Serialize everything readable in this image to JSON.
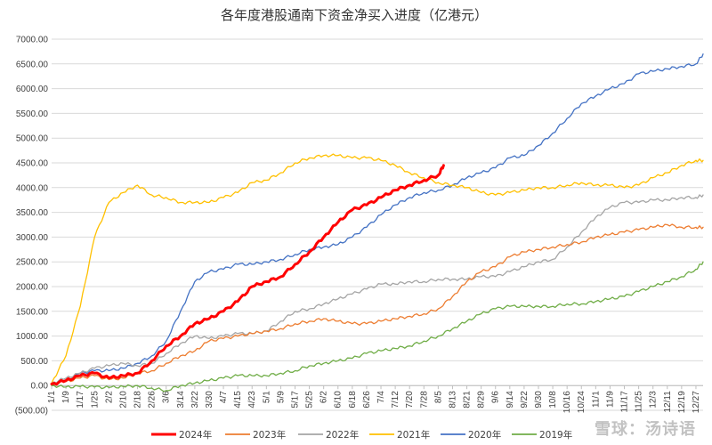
{
  "chart_data": {
    "type": "line",
    "title": "各年度港股通南下资金净买入进度（亿港元）",
    "xlabel": "",
    "ylabel": "",
    "ylim": [
      -500,
      7000
    ],
    "y_ticks": [
      "(500.00)",
      "0.00",
      "500.00",
      "1000.00",
      "1500.00",
      "2000.00",
      "2500.00",
      "3000.00",
      "3500.00",
      "4000.00",
      "4500.00",
      "5000.00",
      "5500.00",
      "6000.00",
      "6500.00",
      "7000.00"
    ],
    "x_ticks": [
      "1/1",
      "1/9",
      "1/17",
      "1/25",
      "2/2",
      "2/10",
      "2/18",
      "2/26",
      "3/6",
      "3/14",
      "3/22",
      "3/30",
      "4/7",
      "4/15",
      "4/23",
      "5/1",
      "5/9",
      "5/17",
      "5/25",
      "6/2",
      "6/10",
      "6/18",
      "6/26",
      "7/4",
      "7/12",
      "7/20",
      "7/28",
      "8/5",
      "8/13",
      "8/21",
      "8/29",
      "9/6",
      "9/14",
      "9/22",
      "9/30",
      "10/8",
      "10/16",
      "10/24",
      "11/1",
      "11/9",
      "11/17",
      "11/25",
      "12/3",
      "12/11",
      "12/19",
      "12/27"
    ],
    "grid": true,
    "legend_position": "bottom",
    "series": [
      {
        "name": "2024年",
        "color": "#ff0000",
        "width": 3,
        "x": [
          "1/1",
          "1/9",
          "1/17",
          "1/25",
          "2/2",
          "2/10",
          "2/18",
          "2/26",
          "3/6",
          "3/14",
          "3/22",
          "3/30",
          "4/7",
          "4/15",
          "4/23",
          "5/1",
          "5/9",
          "5/17",
          "5/25",
          "6/2",
          "6/10",
          "6/18",
          "6/26",
          "7/4",
          "7/12",
          "7/20",
          "7/28",
          "8/5",
          "8/8"
        ],
        "values": [
          30,
          100,
          200,
          250,
          150,
          200,
          250,
          500,
          800,
          1000,
          1250,
          1350,
          1500,
          1700,
          2000,
          2100,
          2200,
          2450,
          2700,
          3000,
          3300,
          3550,
          3650,
          3800,
          3950,
          4050,
          4150,
          4250,
          4450
        ]
      },
      {
        "name": "2023年",
        "color": "#ed7d31",
        "width": 1.3,
        "x": [
          "1/1",
          "1/9",
          "1/17",
          "1/25",
          "2/2",
          "2/10",
          "2/18",
          "2/26",
          "3/6",
          "3/14",
          "3/22",
          "3/30",
          "4/7",
          "4/15",
          "4/23",
          "5/1",
          "5/9",
          "5/17",
          "5/25",
          "6/2",
          "6/10",
          "6/18",
          "6/26",
          "7/4",
          "7/12",
          "7/20",
          "7/28",
          "8/5",
          "8/13",
          "8/21",
          "8/29",
          "9/6",
          "9/14",
          "9/22",
          "9/30",
          "10/8",
          "10/16",
          "10/24",
          "11/1",
          "11/9",
          "11/17",
          "11/25",
          "12/3",
          "12/11",
          "12/19",
          "12/27",
          "12/31"
        ],
        "values": [
          20,
          80,
          150,
          200,
          120,
          150,
          250,
          300,
          450,
          600,
          700,
          900,
          950,
          1000,
          1050,
          1100,
          1150,
          1250,
          1300,
          1350,
          1300,
          1250,
          1250,
          1300,
          1350,
          1400,
          1450,
          1550,
          1800,
          2100,
          2300,
          2400,
          2600,
          2700,
          2750,
          2800,
          2850,
          2900,
          3000,
          3050,
          3100,
          3150,
          3200,
          3250,
          3200,
          3200,
          3200
        ]
      },
      {
        "name": "2022年",
        "color": "#a5a5a5",
        "width": 1.3,
        "x": [
          "1/1",
          "1/9",
          "1/17",
          "1/25",
          "2/2",
          "2/10",
          "2/18",
          "2/26",
          "3/6",
          "3/14",
          "3/22",
          "3/30",
          "4/7",
          "4/15",
          "4/23",
          "5/1",
          "5/9",
          "5/17",
          "5/25",
          "6/2",
          "6/10",
          "6/18",
          "6/26",
          "7/4",
          "7/12",
          "7/20",
          "7/28",
          "8/5",
          "8/13",
          "8/21",
          "8/29",
          "9/6",
          "9/14",
          "9/22",
          "9/30",
          "10/8",
          "10/16",
          "10/24",
          "11/1",
          "11/9",
          "11/17",
          "11/25",
          "12/3",
          "12/11",
          "12/19",
          "12/27",
          "12/31"
        ],
        "values": [
          50,
          150,
          250,
          350,
          400,
          450,
          400,
          450,
          650,
          850,
          1000,
          950,
          1000,
          1050,
          1050,
          1100,
          1300,
          1500,
          1550,
          1650,
          1750,
          1850,
          1950,
          2050,
          2050,
          2100,
          2100,
          2150,
          2150,
          2150,
          2200,
          2200,
          2300,
          2400,
          2500,
          2550,
          2800,
          3100,
          3400,
          3600,
          3700,
          3700,
          3750,
          3750,
          3800,
          3800,
          3850
        ]
      },
      {
        "name": "2021年",
        "color": "#ffc000",
        "width": 1.3,
        "x": [
          "1/1",
          "1/9",
          "1/17",
          "1/25",
          "2/2",
          "2/10",
          "2/18",
          "2/26",
          "3/6",
          "3/14",
          "3/22",
          "3/30",
          "4/7",
          "4/15",
          "4/23",
          "5/1",
          "5/9",
          "5/17",
          "5/25",
          "6/2",
          "6/10",
          "6/18",
          "6/26",
          "7/4",
          "7/12",
          "7/20",
          "7/28",
          "8/5",
          "8/13",
          "8/21",
          "8/29",
          "9/6",
          "9/14",
          "9/22",
          "9/30",
          "10/8",
          "10/16",
          "10/24",
          "11/1",
          "11/9",
          "11/17",
          "11/25",
          "12/3",
          "12/11",
          "12/19",
          "12/27",
          "12/31"
        ],
        "values": [
          50,
          600,
          1600,
          3000,
          3700,
          3900,
          4050,
          3850,
          3800,
          3700,
          3700,
          3700,
          3800,
          3900,
          4100,
          4150,
          4300,
          4500,
          4600,
          4650,
          4650,
          4600,
          4600,
          4550,
          4450,
          4300,
          4200,
          4100,
          4050,
          4000,
          3900,
          3850,
          3900,
          3950,
          4000,
          4000,
          4050,
          4100,
          4050,
          4050,
          4000,
          4050,
          4200,
          4300,
          4450,
          4550,
          4550
        ]
      },
      {
        "name": "2020年",
        "color": "#4472c4",
        "width": 1.3,
        "x": [
          "1/1",
          "1/9",
          "1/17",
          "1/25",
          "2/2",
          "2/10",
          "2/18",
          "2/26",
          "3/6",
          "3/14",
          "3/22",
          "3/30",
          "4/7",
          "4/15",
          "4/23",
          "5/1",
          "5/9",
          "5/17",
          "5/25",
          "6/2",
          "6/10",
          "6/18",
          "6/26",
          "7/4",
          "7/12",
          "7/20",
          "7/28",
          "8/5",
          "8/13",
          "8/21",
          "8/29",
          "9/6",
          "9/14",
          "9/22",
          "9/30",
          "10/8",
          "10/16",
          "10/24",
          "11/1",
          "11/9",
          "11/17",
          "11/25",
          "12/3",
          "12/11",
          "12/19",
          "12/27",
          "12/31"
        ],
        "values": [
          30,
          100,
          250,
          300,
          300,
          350,
          450,
          600,
          900,
          1500,
          2100,
          2300,
          2350,
          2450,
          2450,
          2500,
          2550,
          2650,
          2750,
          2800,
          2850,
          3000,
          3200,
          3450,
          3650,
          3800,
          3900,
          3950,
          4050,
          4200,
          4300,
          4400,
          4600,
          4650,
          4850,
          5100,
          5400,
          5700,
          5850,
          6000,
          6100,
          6300,
          6350,
          6400,
          6450,
          6500,
          6700
        ]
      },
      {
        "name": "2019年",
        "color": "#70ad47",
        "width": 1.3,
        "x": [
          "1/1",
          "1/9",
          "1/17",
          "1/25",
          "2/2",
          "2/10",
          "2/18",
          "2/26",
          "3/6",
          "3/14",
          "3/22",
          "3/30",
          "4/7",
          "4/15",
          "4/23",
          "5/1",
          "5/9",
          "5/17",
          "5/25",
          "6/2",
          "6/10",
          "6/18",
          "6/26",
          "7/4",
          "7/12",
          "7/20",
          "7/28",
          "8/5",
          "8/13",
          "8/21",
          "8/29",
          "9/6",
          "9/14",
          "9/22",
          "9/30",
          "10/8",
          "10/16",
          "10/24",
          "11/1",
          "11/9",
          "11/17",
          "11/25",
          "12/3",
          "12/11",
          "12/19",
          "12/27",
          "12/31"
        ],
        "values": [
          0,
          -30,
          -20,
          -30,
          -40,
          -20,
          0,
          -50,
          -100,
          0,
          50,
          100,
          150,
          200,
          200,
          200,
          250,
          300,
          400,
          450,
          500,
          550,
          650,
          700,
          750,
          800,
          900,
          1000,
          1150,
          1300,
          1450,
          1550,
          1600,
          1600,
          1600,
          1600,
          1650,
          1650,
          1700,
          1750,
          1800,
          1900,
          2000,
          2100,
          2200,
          2350,
          2500
        ]
      }
    ]
  },
  "watermark": "雪球：汤诗语"
}
